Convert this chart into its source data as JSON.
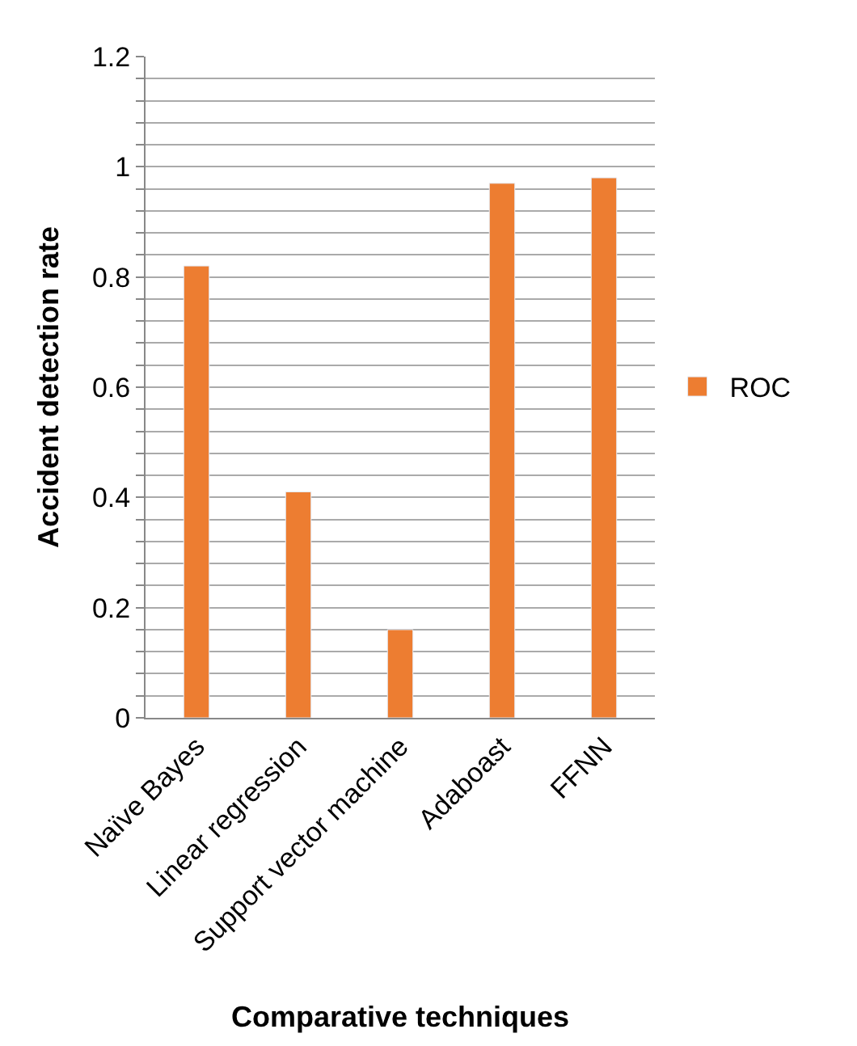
{
  "chart_data": {
    "type": "bar",
    "xlabel": "Comparative techniques",
    "ylabel": "Accident detection rate",
    "categories": [
      "Naïve Bayes",
      "Linear regression",
      "Support vector machine",
      "Adaboast",
      "FFNN"
    ],
    "series": [
      {
        "name": "ROC",
        "color": "#ed7d31",
        "values": [
          0.82,
          0.41,
          0.16,
          0.97,
          0.98
        ]
      }
    ],
    "ylim": [
      0,
      1.2
    ],
    "yticks": [
      0,
      {
        "value": 0.04,
        "label": null
      },
      {
        "value": 0.08,
        "label": null
      },
      {
        "value": 0.12,
        "label": null
      },
      {
        "value": 0.16,
        "label": null
      },
      {
        "value": 0.2,
        "label": "0.2"
      },
      {
        "value": 0.24,
        "label": null
      },
      {
        "value": 0.28,
        "label": null
      },
      {
        "value": 0.32,
        "label": null
      },
      {
        "value": 0.36,
        "label": null
      },
      {
        "value": 0.4,
        "label": "0.4"
      },
      {
        "value": 0.44,
        "label": null
      },
      {
        "value": 0.48,
        "label": null
      },
      {
        "value": 0.52,
        "label": null
      },
      {
        "value": 0.56,
        "label": null
      },
      {
        "value": 0.6,
        "label": "0.6"
      },
      {
        "value": 0.64,
        "label": null
      },
      {
        "value": 0.68,
        "label": null
      },
      {
        "value": 0.72,
        "label": null
      },
      {
        "value": 0.76,
        "label": null
      },
      {
        "value": 0.8,
        "label": "0.8"
      },
      {
        "value": 0.84,
        "label": null
      },
      {
        "value": 0.88,
        "label": null
      },
      {
        "value": 0.92,
        "label": null
      },
      {
        "value": 0.96,
        "label": null
      },
      1,
      {
        "value": 1.04,
        "label": null
      },
      {
        "value": 1.08,
        "label": null
      },
      {
        "value": 1.12,
        "label": null
      },
      {
        "value": 1.16,
        "label": null
      },
      {
        "value": 1.2,
        "label": "1.2"
      }
    ],
    "grid": "y",
    "legend": "right"
  }
}
